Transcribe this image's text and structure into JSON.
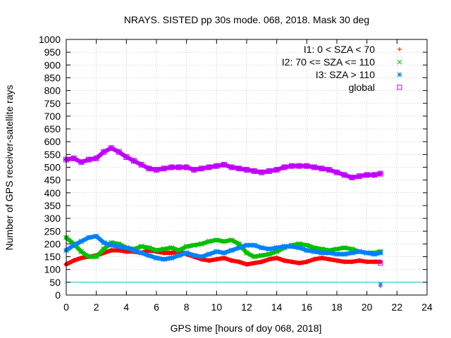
{
  "chart_data": {
    "type": "scatter",
    "title": "NRAYS. SISTED pp 30s mode. 068, 2018. Mask 30 deg",
    "xlabel": "GPS time [hours of doy 068, 2018]",
    "ylabel": "Number of GPS receiver-satellite rays",
    "xlim": [
      0,
      24
    ],
    "ylim": [
      0,
      1000
    ],
    "xticks": [
      0,
      2,
      4,
      6,
      8,
      10,
      12,
      14,
      16,
      18,
      20,
      22,
      24
    ],
    "yticks": [
      0,
      50,
      100,
      150,
      200,
      250,
      300,
      350,
      400,
      450,
      500,
      550,
      600,
      650,
      700,
      750,
      800,
      850,
      900,
      950,
      1000
    ],
    "grid": true,
    "legend_position": "top-right",
    "threshold_line": {
      "y": 50,
      "color": "#00c0c0"
    },
    "series": [
      {
        "name": "I1: 0 < SZA < 70",
        "marker": "+",
        "color": "#ff0000",
        "x": [
          0,
          0.5,
          1,
          1.5,
          2,
          2.5,
          3,
          3.5,
          4,
          4.5,
          5,
          5.5,
          6,
          6.5,
          7,
          7.5,
          8,
          8.5,
          9,
          9.5,
          10,
          10.5,
          11,
          11.5,
          12,
          12.5,
          13,
          13.5,
          14,
          14.5,
          15,
          15.5,
          16,
          16.5,
          17,
          17.5,
          18,
          18.5,
          19,
          19.5,
          20,
          20.5,
          20.9
        ],
        "values": [
          120,
          135,
          145,
          150,
          155,
          165,
          175,
          175,
          170,
          170,
          165,
          175,
          170,
          165,
          165,
          170,
          160,
          150,
          140,
          135,
          140,
          145,
          135,
          130,
          120,
          125,
          130,
          140,
          145,
          135,
          130,
          125,
          130,
          140,
          145,
          140,
          135,
          130,
          130,
          135,
          130,
          130,
          130
        ]
      },
      {
        "name": "I2: 70 <= SZA <= 110",
        "marker": "x",
        "color": "#00c000",
        "x": [
          0,
          0.5,
          1,
          1.5,
          2,
          2.5,
          3,
          3.5,
          4,
          4.5,
          5,
          5.5,
          6,
          6.5,
          7,
          7.5,
          8,
          8.5,
          9,
          9.5,
          10,
          10.5,
          11,
          11.5,
          12,
          12.5,
          13,
          13.5,
          14,
          14.5,
          15,
          15.5,
          16,
          16.5,
          17,
          17.5,
          18,
          18.5,
          19,
          19.5,
          20,
          20.5,
          20.9
        ],
        "values": [
          225,
          200,
          170,
          150,
          150,
          180,
          205,
          200,
          185,
          180,
          190,
          185,
          175,
          180,
          185,
          175,
          190,
          195,
          200,
          210,
          215,
          210,
          215,
          200,
          165,
          150,
          155,
          160,
          170,
          185,
          195,
          200,
          195,
          185,
          180,
          175,
          180,
          185,
          180,
          170,
          165,
          165,
          170
        ]
      },
      {
        "name": "I3: SZA > 110",
        "marker": "*",
        "color": "#0080ff",
        "x": [
          0,
          0.5,
          1,
          1.5,
          2,
          2.5,
          3,
          3.5,
          4,
          4.5,
          5,
          5.5,
          6,
          6.5,
          7,
          7.5,
          8,
          8.5,
          9,
          9.5,
          10,
          10.5,
          11,
          11.5,
          12,
          12.5,
          13,
          13.5,
          14,
          14.5,
          15,
          15.5,
          16,
          16.5,
          17,
          17.5,
          18,
          18.5,
          19,
          19.5,
          20,
          20.5,
          20.9
        ],
        "values": [
          175,
          195,
          210,
          225,
          230,
          205,
          195,
          190,
          185,
          175,
          165,
          155,
          145,
          140,
          145,
          155,
          165,
          155,
          150,
          160,
          170,
          165,
          175,
          185,
          195,
          195,
          185,
          180,
          185,
          190,
          190,
          185,
          175,
          170,
          165,
          165,
          160,
          160,
          165,
          170,
          165,
          160,
          165
        ]
      },
      {
        "name": "global",
        "marker": "square",
        "color": "#c000ff",
        "x": [
          0,
          0.5,
          1,
          1.5,
          2,
          2.5,
          3,
          3.5,
          4,
          4.5,
          5,
          5.5,
          6,
          6.5,
          7,
          7.5,
          8,
          8.5,
          9,
          9.5,
          10,
          10.5,
          11,
          11.5,
          12,
          12.5,
          13,
          13.5,
          14,
          14.5,
          15,
          15.5,
          16,
          16.5,
          17,
          17.5,
          18,
          18.5,
          19,
          19.5,
          20,
          20.5,
          20.9
        ],
        "values": [
          530,
          535,
          520,
          530,
          535,
          560,
          575,
          560,
          540,
          525,
          510,
          495,
          490,
          495,
          500,
          500,
          500,
          490,
          495,
          500,
          505,
          510,
          500,
          495,
          490,
          485,
          480,
          485,
          490,
          500,
          505,
          505,
          505,
          500,
          495,
          490,
          480,
          470,
          460,
          465,
          470,
          470,
          475
        ]
      }
    ],
    "end_points": [
      {
        "series": "I1: 0 < SZA < 70",
        "x": 20.9,
        "y": 35
      },
      {
        "series": "I3: SZA > 110",
        "x": 20.9,
        "y": 42
      },
      {
        "series": "global",
        "x": 20.9,
        "y": 125
      }
    ]
  }
}
